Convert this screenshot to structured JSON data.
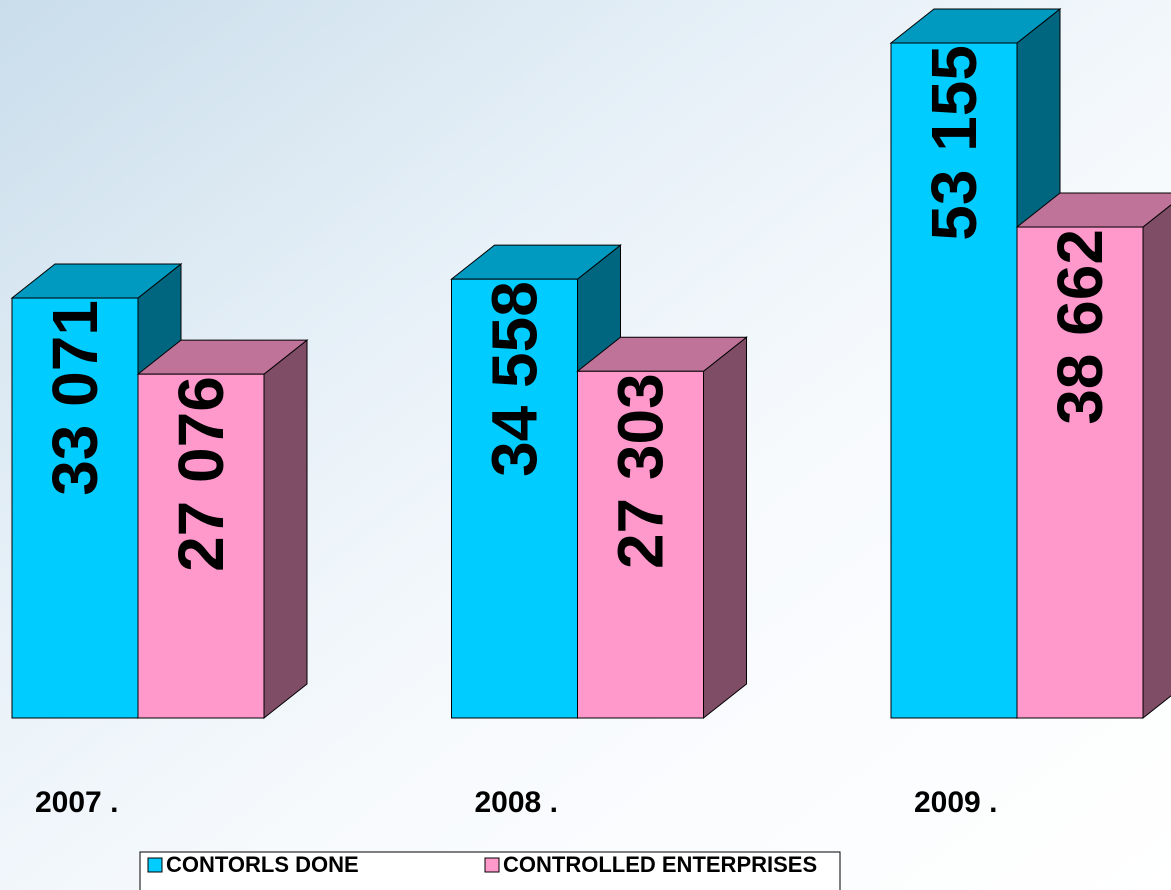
{
  "chart_data": {
    "type": "bar3d",
    "categories": [
      "2007 .",
      "2008 .",
      "2009 ."
    ],
    "series": [
      {
        "name": "CONTORLS DONE",
        "color": "#00ccff",
        "values": [
          33071,
          34558,
          53155
        ],
        "value_labels": [
          "33 071",
          "34 558",
          "53 155"
        ]
      },
      {
        "name": "CONTROLLED ENTERPRISES",
        "color": "#ff99cc",
        "values": [
          27076,
          27303,
          38662
        ],
        "value_labels": [
          "27 076",
          "27 303",
          "38 662"
        ]
      }
    ]
  }
}
